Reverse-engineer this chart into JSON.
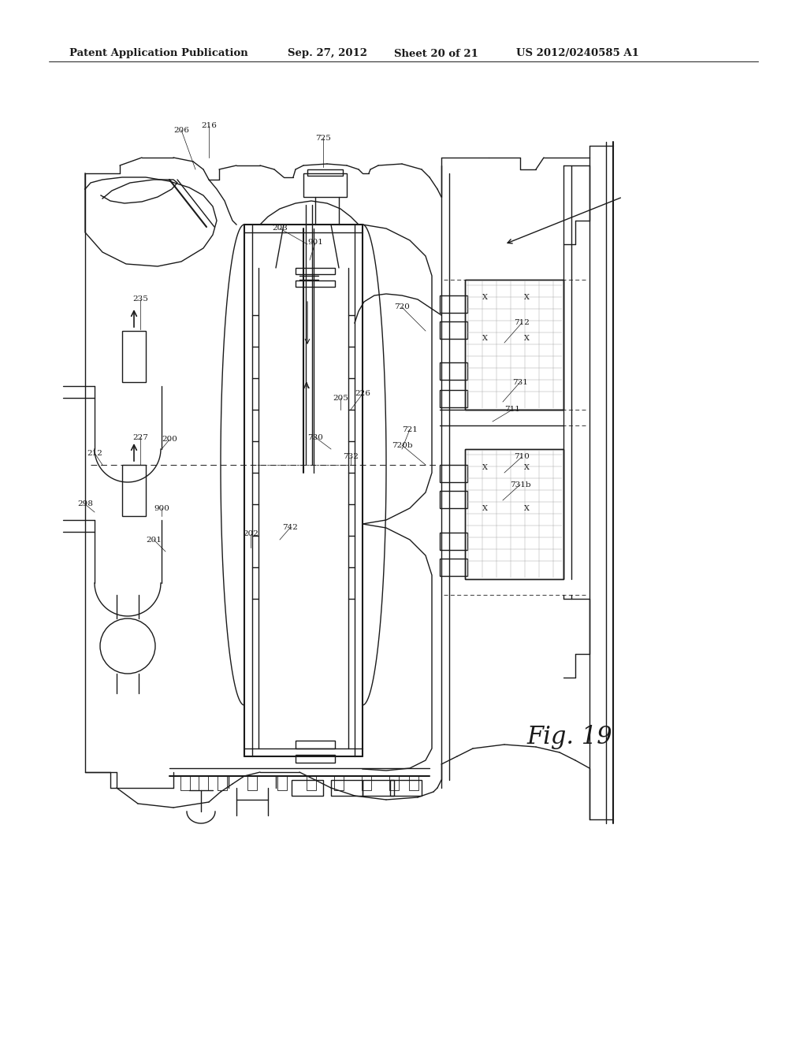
{
  "title": "Patent Application Publication",
  "date": "Sep. 27, 2012",
  "sheet": "Sheet 20 of 21",
  "patent_num": "US 2012/0240585 A1",
  "fig_label": "Fig. 19",
  "bg_color": "#ffffff",
  "line_color": "#1a1a1a",
  "header_font_size": 9.5,
  "fig_label_font_size": 22,
  "gray_line": "#555555"
}
